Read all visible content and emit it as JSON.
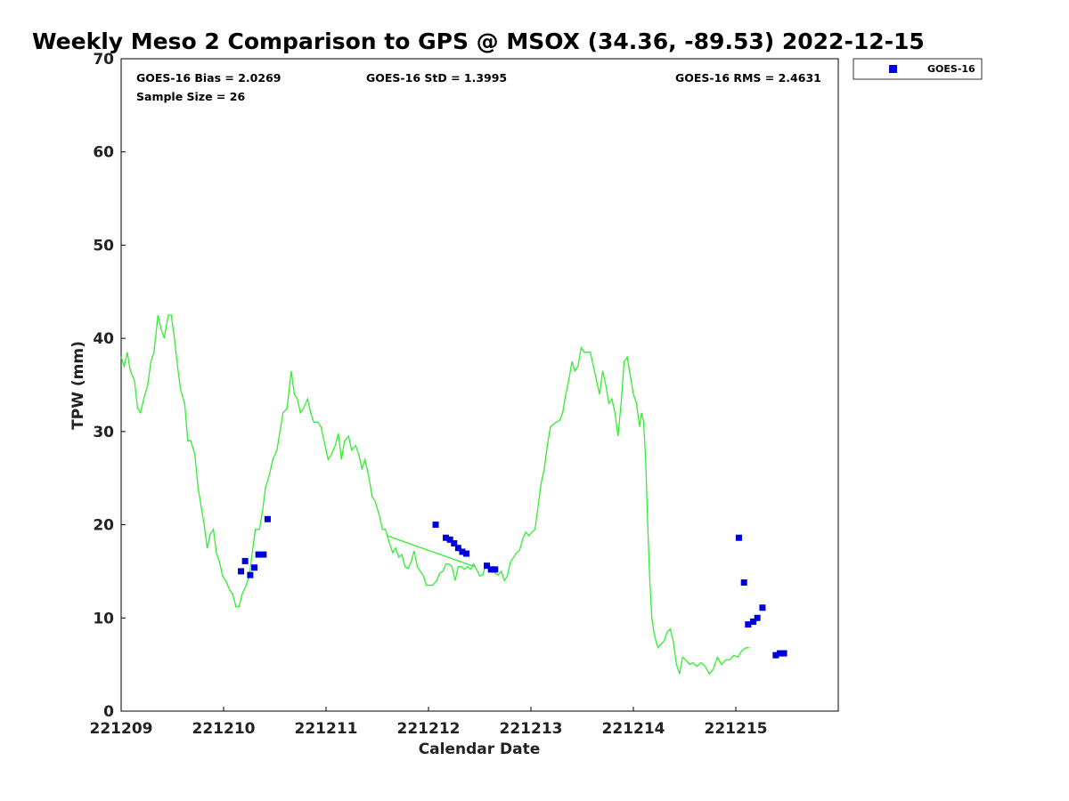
{
  "chart_data": {
    "type": "line",
    "title": "Weekly Meso 2 Comparison to GPS @ MSOX (34.36, -89.53) 2022-12-15",
    "xlabel": "Calendar Date",
    "ylabel": "TPW (mm)",
    "ylim": [
      0,
      70
    ],
    "xlim": [
      0,
      7
    ],
    "x_tick_values": [
      0,
      1,
      2,
      3,
      4,
      5,
      6
    ],
    "x_tick_labels": [
      "221209",
      "221210",
      "221211",
      "221212",
      "221213",
      "221214",
      "221215"
    ],
    "y_ticks": [
      0,
      10,
      20,
      30,
      40,
      50,
      60,
      70
    ],
    "stats": {
      "bias": "GOES-16 Bias = 2.0269",
      "std": "GOES-16 StD = 1.3995",
      "rms": "GOES-16 RMS = 2.4631",
      "sample": "Sample Size = 26"
    },
    "legend": {
      "label": "GOES-16",
      "color": "#0000dd",
      "position": "outside top-right"
    },
    "gps_color": "#33ee33",
    "gps_series": [
      [
        0.0,
        38.0
      ],
      [
        0.03,
        37.0
      ],
      [
        0.06,
        38.5
      ],
      [
        0.09,
        36.5
      ],
      [
        0.13,
        35.5
      ],
      [
        0.16,
        32.5
      ],
      [
        0.19,
        32.0
      ],
      [
        0.22,
        33.5
      ],
      [
        0.26,
        35.0
      ],
      [
        0.29,
        37.5
      ],
      [
        0.32,
        38.5
      ],
      [
        0.36,
        42.5
      ],
      [
        0.39,
        41.0
      ],
      [
        0.42,
        40.0
      ],
      [
        0.46,
        42.5
      ],
      [
        0.49,
        42.5
      ],
      [
        0.52,
        40.0
      ],
      [
        0.55,
        37.0
      ],
      [
        0.58,
        34.5
      ],
      [
        0.62,
        33.0
      ],
      [
        0.65,
        29.0
      ],
      [
        0.68,
        29.0
      ],
      [
        0.72,
        27.5
      ],
      [
        0.75,
        24.0
      ],
      [
        0.78,
        22.0
      ],
      [
        0.81,
        20.0
      ],
      [
        0.84,
        17.5
      ],
      [
        0.87,
        19.0
      ],
      [
        0.9,
        19.5
      ],
      [
        0.93,
        17.0
      ],
      [
        0.96,
        16.0
      ],
      [
        0.99,
        14.5
      ],
      [
        1.02,
        14.0
      ],
      [
        1.06,
        13.0
      ],
      [
        1.09,
        12.5
      ],
      [
        1.12,
        11.2
      ],
      [
        1.15,
        11.2
      ],
      [
        1.18,
        12.5
      ],
      [
        1.22,
        13.5
      ],
      [
        1.25,
        14.5
      ],
      [
        1.28,
        17.0
      ],
      [
        1.31,
        19.5
      ],
      [
        1.35,
        19.5
      ],
      [
        1.38,
        21.5
      ],
      [
        1.41,
        24.0
      ],
      [
        1.45,
        25.5
      ],
      [
        1.48,
        27.0
      ],
      [
        1.52,
        28.0
      ],
      [
        1.55,
        30.0
      ],
      [
        1.58,
        32.0
      ],
      [
        1.62,
        32.5
      ],
      [
        1.66,
        36.5
      ],
      [
        1.69,
        34.0
      ],
      [
        1.72,
        33.5
      ],
      [
        1.75,
        32.0
      ],
      [
        1.78,
        32.5
      ],
      [
        1.82,
        33.5
      ],
      [
        1.85,
        32.0
      ],
      [
        1.88,
        31.0
      ],
      [
        1.92,
        31.0
      ],
      [
        1.95,
        30.5
      ],
      [
        1.99,
        28.5
      ],
      [
        2.02,
        27.0
      ],
      [
        2.05,
        27.5
      ],
      [
        2.09,
        28.5
      ],
      [
        2.12,
        29.8
      ],
      [
        2.15,
        27.0
      ],
      [
        2.18,
        29.0
      ],
      [
        2.22,
        29.5
      ],
      [
        2.25,
        28.0
      ],
      [
        2.29,
        28.5
      ],
      [
        2.32,
        27.5
      ],
      [
        2.35,
        26.0
      ],
      [
        2.38,
        27.0
      ],
      [
        2.42,
        25.0
      ],
      [
        2.45,
        23.0
      ],
      [
        2.48,
        22.5
      ],
      [
        2.52,
        21.0
      ],
      [
        2.55,
        19.5
      ],
      [
        2.58,
        19.5
      ],
      [
        2.62,
        18.0
      ],
      [
        2.65,
        17.0
      ],
      [
        2.68,
        17.5
      ],
      [
        2.71,
        16.5
      ],
      [
        2.74,
        16.8
      ],
      [
        2.77,
        15.5
      ],
      [
        2.8,
        15.3
      ],
      [
        2.83,
        16.0
      ],
      [
        2.86,
        17.2
      ],
      [
        2.89,
        15.5
      ],
      [
        2.92,
        15.0
      ],
      [
        2.95,
        14.5
      ],
      [
        2.98,
        13.5
      ],
      [
        3.01,
        13.5
      ],
      [
        3.04,
        13.5
      ],
      [
        3.08,
        14.0
      ],
      [
        3.11,
        14.8
      ],
      [
        3.14,
        15.0
      ],
      [
        3.17,
        15.8
      ],
      [
        3.2,
        15.8
      ],
      [
        3.23,
        15.5
      ],
      [
        3.26,
        14.0
      ],
      [
        3.29,
        15.5
      ],
      [
        3.32,
        15.5
      ],
      [
        3.35,
        15.2
      ],
      [
        3.38,
        15.5
      ],
      [
        3.41,
        15.2
      ],
      [
        3.44,
        15.8
      ],
      [
        3.47,
        15.2
      ],
      [
        3.5,
        14.5
      ],
      [
        3.53,
        14.6
      ],
      [
        3.56,
        15.8
      ],
      [
        3.59,
        15.6
      ],
      [
        3.62,
        15.2
      ],
      [
        3.65,
        14.8
      ],
      [
        3.68,
        14.6
      ],
      [
        3.71,
        15.0
      ],
      [
        3.74,
        14.0
      ],
      [
        3.77,
        14.5
      ],
      [
        3.8,
        16.0
      ],
      [
        3.83,
        16.5
      ],
      [
        3.86,
        17.0
      ],
      [
        3.89,
        17.3
      ],
      [
        3.92,
        18.5
      ],
      [
        3.95,
        19.2
      ],
      [
        3.98,
        18.8
      ],
      [
        4.01,
        19.2
      ],
      [
        4.04,
        19.5
      ],
      [
        4.07,
        22.0
      ],
      [
        4.1,
        24.5
      ],
      [
        4.13,
        26.0
      ],
      [
        4.16,
        28.5
      ],
      [
        4.19,
        30.5
      ],
      [
        4.22,
        30.8
      ],
      [
        4.25,
        31.0
      ],
      [
        4.28,
        31.2
      ],
      [
        4.31,
        32.0
      ],
      [
        4.34,
        34.0
      ],
      [
        4.37,
        35.5
      ],
      [
        4.4,
        37.5
      ],
      [
        4.43,
        36.5
      ],
      [
        4.46,
        37.0
      ],
      [
        4.49,
        39.0
      ],
      [
        4.52,
        38.5
      ],
      [
        4.55,
        38.5
      ],
      [
        4.58,
        38.5
      ],
      [
        4.61,
        37.0
      ],
      [
        4.64,
        35.5
      ],
      [
        4.67,
        34.0
      ],
      [
        4.7,
        36.5
      ],
      [
        4.73,
        35.0
      ],
      [
        4.76,
        33.0
      ],
      [
        4.79,
        33.5
      ],
      [
        4.82,
        32.0
      ],
      [
        4.85,
        29.5
      ],
      [
        4.88,
        33.0
      ],
      [
        4.91,
        37.5
      ],
      [
        4.94,
        38.0
      ],
      [
        4.97,
        36.0
      ],
      [
        5.0,
        34.0
      ],
      [
        5.03,
        33.0
      ],
      [
        5.06,
        30.5
      ],
      [
        5.08,
        32.0
      ],
      [
        5.1,
        31.0
      ],
      [
        5.12,
        27.0
      ],
      [
        5.14,
        20.0
      ],
      [
        5.16,
        14.0
      ],
      [
        5.18,
        10.0
      ],
      [
        5.2,
        8.5
      ],
      [
        5.22,
        7.5
      ],
      [
        5.24,
        6.8
      ],
      [
        5.27,
        7.2
      ],
      [
        5.3,
        7.5
      ],
      [
        5.33,
        8.5
      ],
      [
        5.36,
        8.8
      ],
      [
        5.39,
        7.5
      ],
      [
        5.42,
        5.0
      ],
      [
        5.45,
        4.0
      ],
      [
        5.48,
        5.8
      ],
      [
        5.51,
        5.5
      ],
      [
        5.55,
        5.0
      ],
      [
        5.58,
        5.2
      ],
      [
        5.62,
        4.8
      ],
      [
        5.66,
        5.2
      ],
      [
        5.7,
        4.8
      ],
      [
        5.74,
        4.0
      ],
      [
        5.78,
        4.5
      ],
      [
        5.82,
        5.8
      ],
      [
        5.86,
        5.0
      ],
      [
        5.9,
        5.5
      ],
      [
        5.94,
        5.5
      ],
      [
        5.98,
        6.0
      ],
      [
        6.02,
        5.8
      ],
      [
        6.06,
        6.5
      ],
      [
        6.1,
        6.8
      ],
      [
        6.13,
        6.8
      ]
    ],
    "gps_connector": [
      [
        2.6,
        18.8
      ],
      [
        3.45,
        15.5
      ]
    ],
    "goes_series": [
      [
        1.17,
        15.0
      ],
      [
        1.21,
        16.1
      ],
      [
        1.26,
        14.6
      ],
      [
        1.3,
        15.4
      ],
      [
        1.34,
        16.8
      ],
      [
        1.39,
        16.8
      ],
      [
        1.43,
        20.6
      ],
      [
        3.07,
        20.0
      ],
      [
        3.17,
        18.6
      ],
      [
        3.21,
        18.4
      ],
      [
        3.25,
        18.0
      ],
      [
        3.29,
        17.5
      ],
      [
        3.33,
        17.1
      ],
      [
        3.37,
        16.9
      ],
      [
        3.57,
        15.6
      ],
      [
        3.61,
        15.2
      ],
      [
        3.65,
        15.2
      ],
      [
        6.03,
        18.6
      ],
      [
        6.08,
        13.8
      ],
      [
        6.12,
        9.3
      ],
      [
        6.17,
        9.6
      ],
      [
        6.21,
        10.0
      ],
      [
        6.26,
        11.1
      ],
      [
        6.39,
        6.0
      ],
      [
        6.43,
        6.2
      ],
      [
        6.47,
        6.2
      ]
    ]
  }
}
